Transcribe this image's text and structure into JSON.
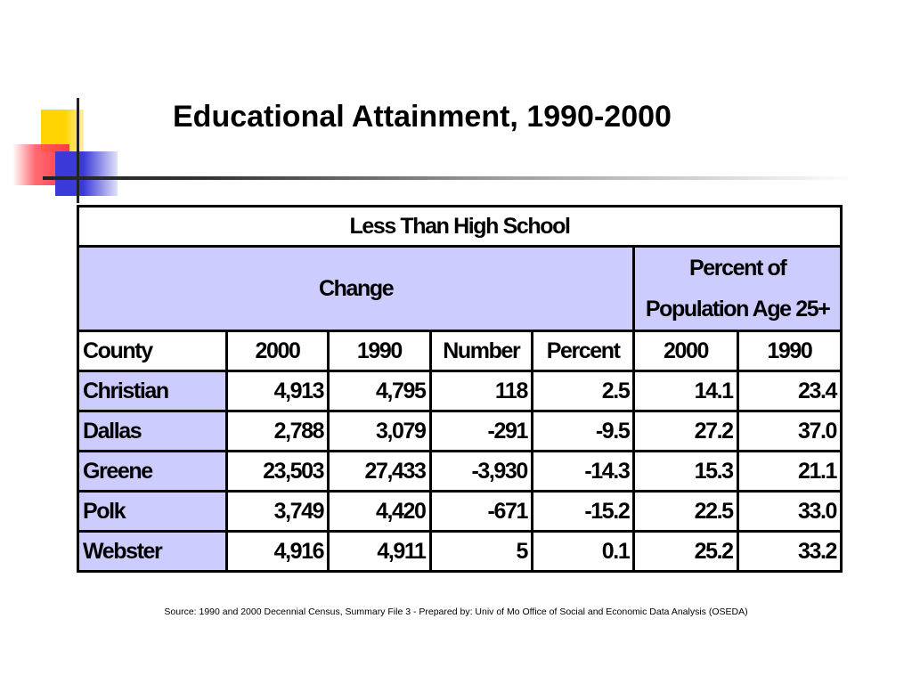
{
  "title": "Educational Attainment, 1990-2000",
  "table": {
    "title": "Less Than High School",
    "group_change": "Change",
    "group_percent_line1": "Percent of",
    "group_percent_line2": "Population Age 25+",
    "headers": [
      "County",
      "2000",
      "1990",
      "Number",
      "Percent",
      "2000",
      "1990"
    ],
    "rows": [
      [
        "Christian",
        "4,913",
        "4,795",
        "118",
        "2.5",
        "14.1",
        "23.4"
      ],
      [
        "Dallas",
        "2,788",
        "3,079",
        "-291",
        "-9.5",
        "27.2",
        "37.0"
      ],
      [
        "Greene",
        "23,503",
        "27,433",
        "-3,930",
        "-14.3",
        "15.3",
        "21.1"
      ],
      [
        "Polk",
        "3,749",
        "4,420",
        "-671",
        "-15.2",
        "22.5",
        "33.0"
      ],
      [
        "Webster",
        "4,916",
        "4,911",
        "5",
        "0.1",
        "25.2",
        "33.2"
      ]
    ]
  },
  "source": "Source: 1990 and 2000 Decennial Census, Summary File 3 - Prepared by: Univ of Mo Office of Social and Economic Data Analysis (OSEDA)",
  "colors": {
    "header_fill": "#ccccff",
    "logo_yellow": "#ffd400",
    "logo_red": "#ff3a4a",
    "logo_blue": "#3a3ad8"
  }
}
